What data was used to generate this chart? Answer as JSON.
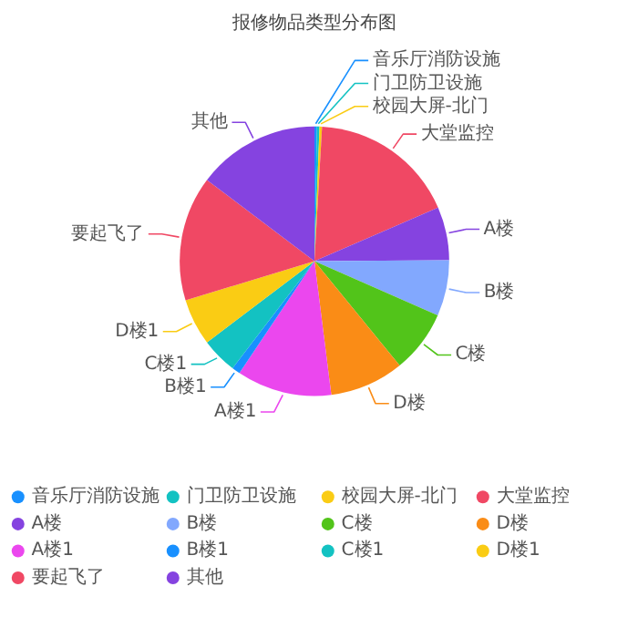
{
  "chart_data": {
    "type": "pie",
    "title": "报修物品类型分布图",
    "categories": [
      "音乐厅消防设施",
      "门卫防卫设施",
      "校园大屏-北门",
      "大堂监控",
      "A楼",
      "B楼",
      "C楼",
      "D楼",
      "A楼1",
      "B楼1",
      "C楼1",
      "D楼1",
      "要起飞了",
      "其他"
    ],
    "values": [
      0.3,
      0.3,
      0.3,
      17.6,
      6.4,
      6.7,
      7.5,
      8.9,
      11.4,
      1.0,
      4.3,
      5.6,
      15.0,
      14.7
    ],
    "colors": [
      "#1890ff",
      "#13c2c2",
      "#facc14",
      "#f04864",
      "#8543e0",
      "#82a8fe",
      "#52c41a",
      "#fa8c16",
      "#eb47ee",
      "#1890ff",
      "#13c2c2",
      "#facc14",
      "#f04864",
      "#8543e0"
    ],
    "legend": "bottom"
  }
}
